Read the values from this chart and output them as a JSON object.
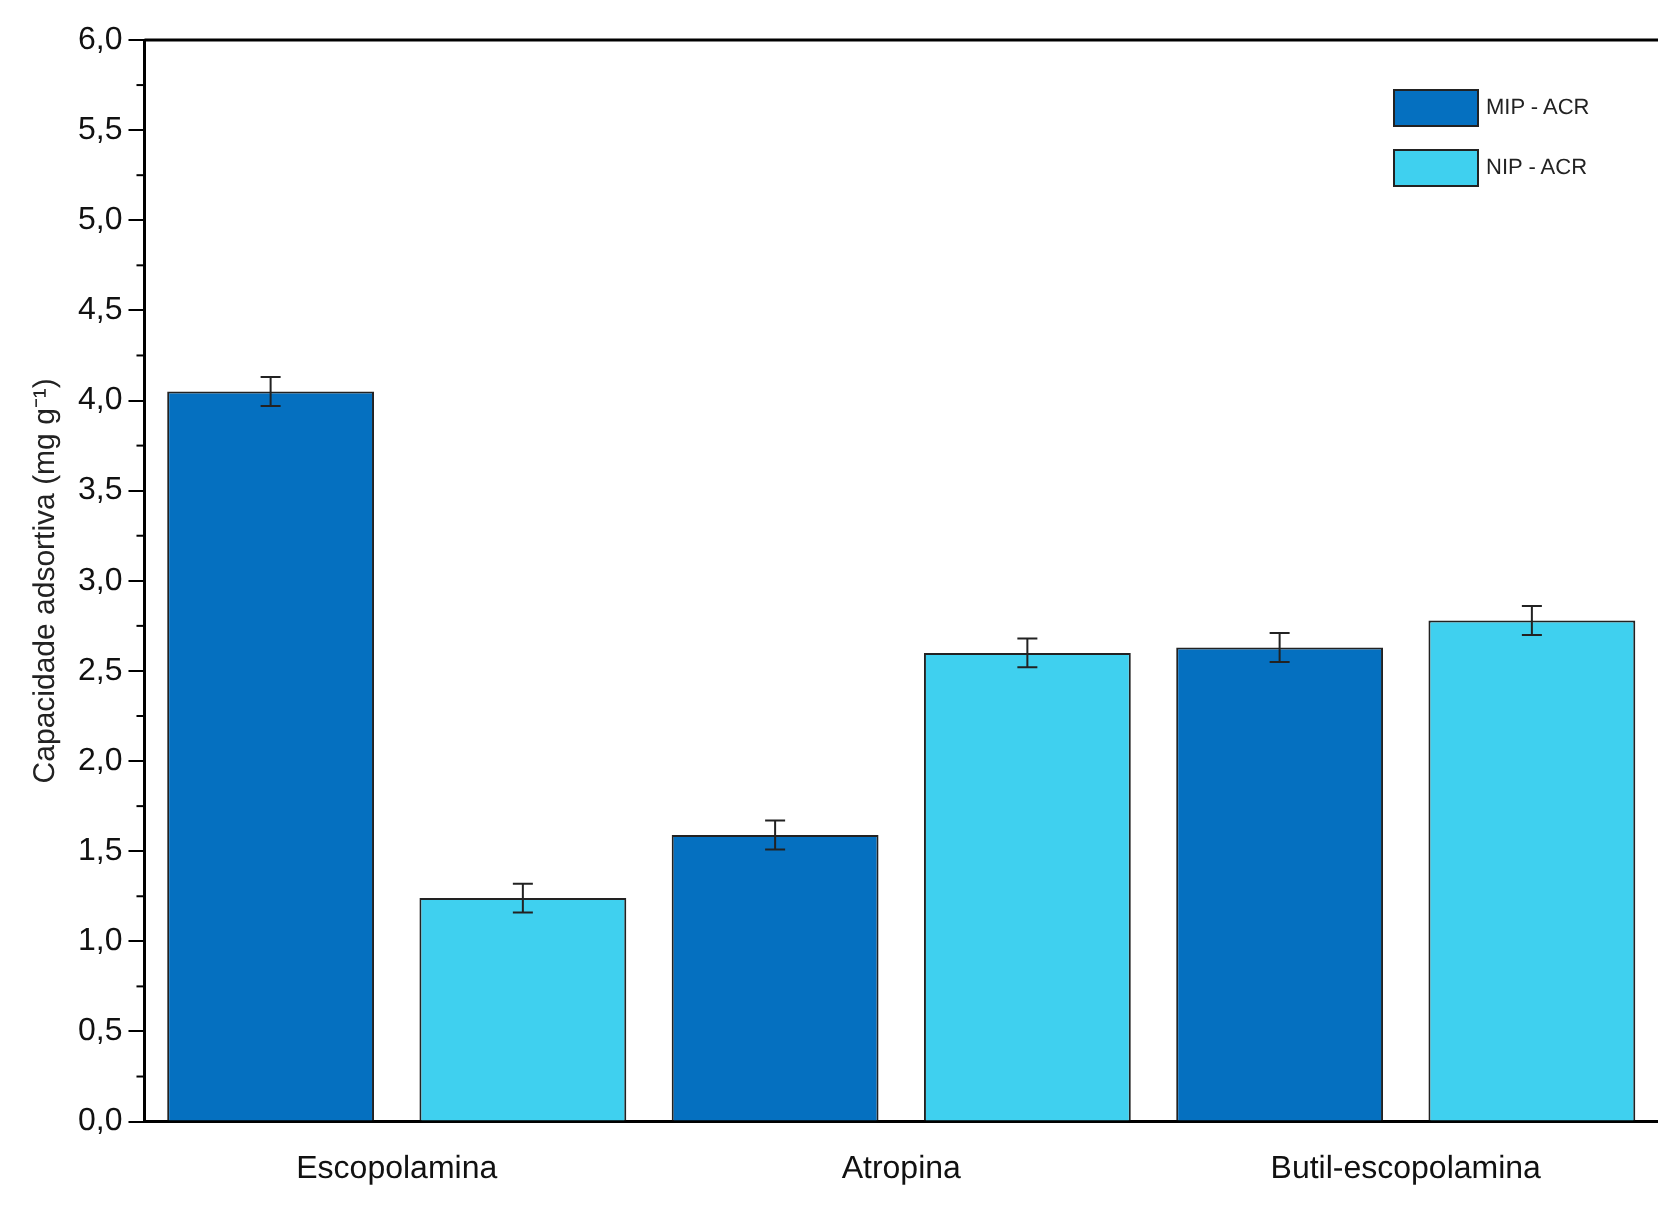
{
  "chart_data": {
    "type": "bar",
    "ylabel": "Capacidade adsortiva (mg g⁻¹)",
    "categories": [
      "Escopolamina",
      "Atropina",
      "Butil-escopolamina"
    ],
    "series": [
      {
        "name": "MIP - ACR",
        "color": "#0570c0",
        "values": [
          4.05,
          1.59,
          2.63
        ],
        "errors": [
          0.08,
          0.08,
          0.08
        ]
      },
      {
        "name": "NIP - ACR",
        "color": "#3fd0ef",
        "values": [
          1.24,
          2.6,
          2.78
        ],
        "errors": [
          0.08,
          0.08,
          0.08
        ]
      }
    ],
    "ylim": [
      0,
      6
    ],
    "yticks": [
      {
        "value": 0,
        "label": "0,0"
      },
      {
        "value": 0.5,
        "label": "0,5"
      },
      {
        "value": 1,
        "label": "1,0"
      },
      {
        "value": 1.5,
        "label": "1,5"
      },
      {
        "value": 2,
        "label": "2,0"
      },
      {
        "value": 2.5,
        "label": "2,5"
      },
      {
        "value": 3,
        "label": "3,0"
      },
      {
        "value": 3.5,
        "label": "3,5"
      },
      {
        "value": 4,
        "label": "4,0"
      },
      {
        "value": 4.5,
        "label": "4,5"
      },
      {
        "value": 5,
        "label": "5,0"
      },
      {
        "value": 5.5,
        "label": "5,5"
      },
      {
        "value": 6,
        "label": "6,0"
      }
    ],
    "grid": false,
    "legend": "top right"
  }
}
